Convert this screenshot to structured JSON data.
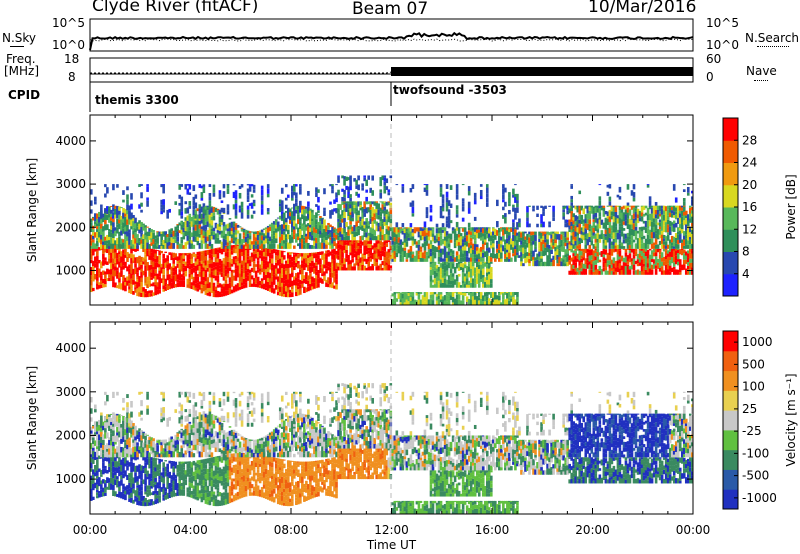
{
  "header": {
    "station": "Clyde River (fitACF)",
    "beam": "Beam 07",
    "date": "10/Mar/2016"
  },
  "noise_panel": {
    "left_label": "N.Sky",
    "left_ticks": [
      "10^5",
      "10^0"
    ],
    "right_ticks": [
      "10^5",
      "10^0"
    ],
    "right_label": "N.Search"
  },
  "freq_panel": {
    "left_label_line1": "Freq.",
    "left_label_line2": "[MHz]",
    "left_ticks": [
      "18",
      "8"
    ],
    "right_ticks": [
      "60",
      "0"
    ],
    "right_label": "Nave"
  },
  "cpid_panel": {
    "label": "CPID",
    "programs": [
      {
        "name": "themis 3300",
        "start_hour": 0
      },
      {
        "name": "twofsound -3503",
        "start_hour": 12
      }
    ]
  },
  "x_axis": {
    "label": "Time UT",
    "ticks": [
      "00:00",
      "04:00",
      "08:00",
      "12:00",
      "16:00",
      "20:00",
      "00:00"
    ]
  },
  "chart_data": [
    {
      "type": "heatmap",
      "ylabel": "Slant Range [km]",
      "xlabel": "",
      "y_ticks": [
        "1000",
        "2000",
        "3000",
        "4000"
      ],
      "xlim": [
        0,
        24
      ],
      "ylim": [
        200,
        4600
      ],
      "colorbar": {
        "label": "Power [dB]",
        "ticks": [
          "4",
          "8",
          "12",
          "16",
          "20",
          "24",
          "28"
        ],
        "range": [
          0,
          30
        ]
      }
    },
    {
      "type": "heatmap",
      "ylabel": "Slant Range [km]",
      "xlabel": "Time UT",
      "y_ticks": [
        "1000",
        "2000",
        "3000",
        "4000"
      ],
      "xlim": [
        0,
        24
      ],
      "ylim": [
        200,
        4600
      ],
      "colorbar": {
        "label": "Velocity [m s⁻¹]",
        "ticks": [
          "1000",
          "500",
          "100",
          "25",
          "-25",
          "-100",
          "-500",
          "-1000"
        ]
      }
    }
  ],
  "colors": {
    "power": [
      "#1e22ff",
      "#2848b0",
      "#2f8f5a",
      "#58b85a",
      "#d8d820",
      "#f09a10",
      "#f05a00",
      "#ff0000"
    ],
    "velocity": [
      "#2030c0",
      "#2a5aa8",
      "#3a8a60",
      "#60c040",
      "#c8c8c8",
      "#e8d050",
      "#f09020",
      "#f06010",
      "#ff0000"
    ]
  }
}
